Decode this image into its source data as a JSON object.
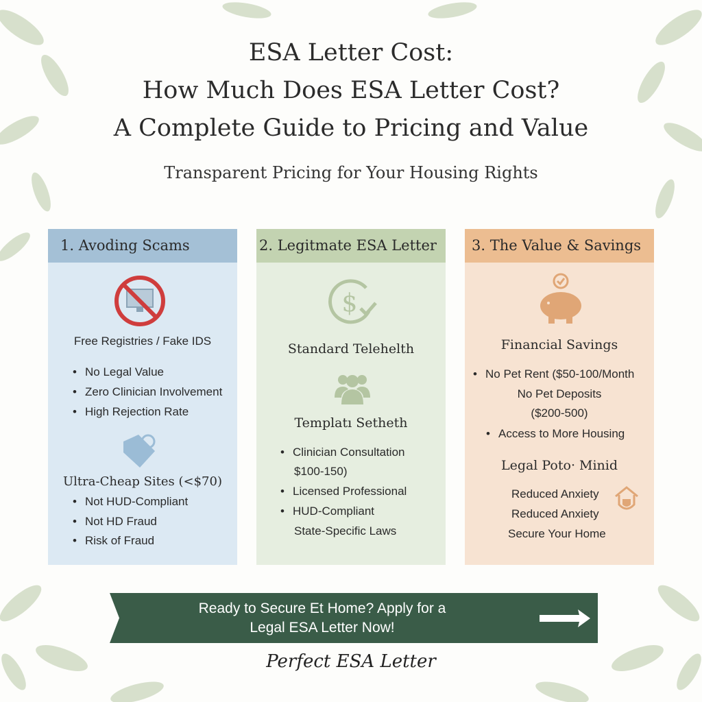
{
  "header": {
    "title_line1": "ESA Letter Cost:",
    "title_line2": "How Much Does ESA Letter Cost?",
    "title_line3": "A Complete Guide to Pricing and Value",
    "subtitle": "Transparent Pricing for Your Housing Rights"
  },
  "cards": [
    {
      "title": "1.   Avoding Scams",
      "color": "#a4c0d6",
      "icon1": "no-monitor-icon",
      "sub1": "Free Registries / Fake IDS",
      "list1": [
        "No Legal Value",
        "Zero Clinician Involvement",
        "High Rejection Rate"
      ],
      "icon2": "price-tag-icon",
      "sub2": "Ultra-Cheap Sites (<$70)",
      "list2": [
        "Not HUD-Compliant",
        "Not HD Fraud",
        "Risk of Fraud"
      ]
    },
    {
      "title": "2. Legitmate ESA Letter",
      "color": "#c3d3b1",
      "icon1": "dollar-check-icon",
      "sub1": "Standard Telehelth",
      "icon2": "people-icon",
      "sub2": "Templatı Setheth",
      "list": [
        "Clinician Consultation",
        "$100-150)",
        "Licensed Professional",
        "HUD-Compliant",
        "State-Specific Laws"
      ]
    },
    {
      "title": "3. The Value & Savings",
      "color": "#ecbd91",
      "icon1": "piggy-bank-icon",
      "sub1": "Financial Savings",
      "list": [
        "No Pet Rent ($50-100/Month",
        "No Pet Deposits",
        "($200-500)",
        "Access to More Housing"
      ],
      "sub2": "Legal Poto· Minid",
      "icon2": "home-shield-icon",
      "list2": [
        "Reduced Anxiety",
        "Reduced Anxiety",
        "Secure Your Home"
      ]
    }
  ],
  "cta": {
    "line1": "Ready to Secure Et Home? Apply for a",
    "line2": "Legal ESA Letter Now!",
    "icon": "arrow-right-icon",
    "color": "#3a5c48"
  },
  "brand": "Perfect ESA Letter"
}
